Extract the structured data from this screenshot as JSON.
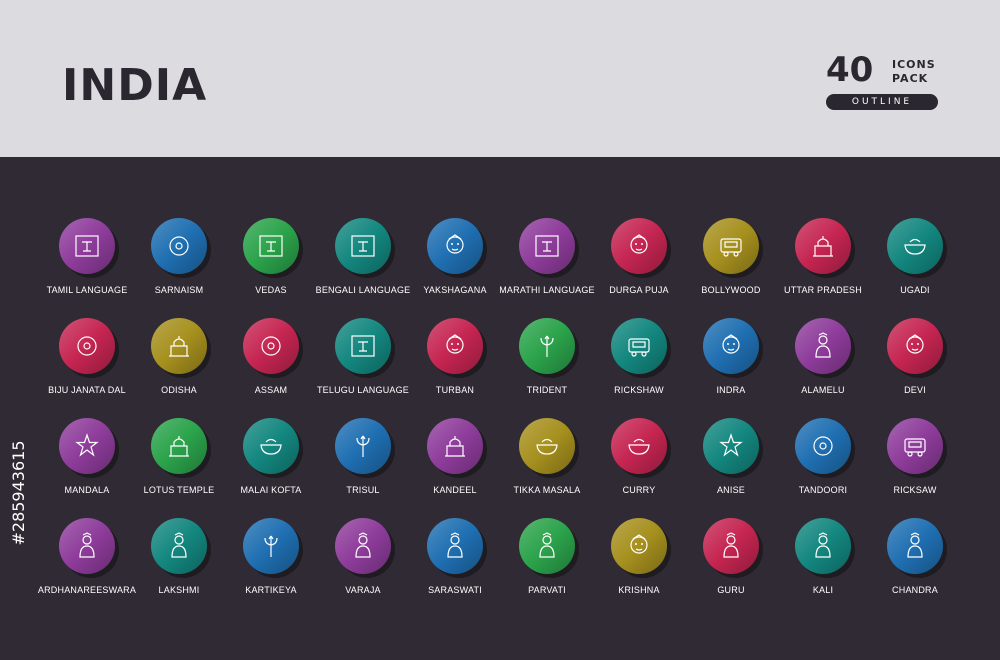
{
  "header": {
    "title": "INDIA",
    "count": "40",
    "line1": "ICONS",
    "line2": "PACK",
    "style": "OUTLINE"
  },
  "stock_id": "#285943615",
  "colors": {
    "header_bg": "#dcdbdf",
    "body_bg": "#2f2a33",
    "purple": "#8e3c9b",
    "blue": "#1f6fb2",
    "green": "#2ba34b",
    "teal": "#13877f",
    "crimson": "#c52551",
    "olive": "#a6901e"
  },
  "icons": [
    {
      "label": "TAMIL LANGUAGE",
      "color": "#8e3c9b",
      "icon": "tamil-letter-icon"
    },
    {
      "label": "SARNAISM",
      "color": "#1f6fb2",
      "icon": "sarnaism-icon"
    },
    {
      "label": "VEDAS",
      "color": "#2ba34b",
      "icon": "book-icon"
    },
    {
      "label": "BENGALI LANGUAGE",
      "color": "#13877f",
      "icon": "bengali-letter-icon"
    },
    {
      "label": "YAKSHAGANA",
      "color": "#1f6fb2",
      "icon": "mask-icon"
    },
    {
      "label": "MARATHI LANGUAGE",
      "color": "#8e3c9b",
      "icon": "marathi-letter-icon"
    },
    {
      "label": "DURGA PUJA",
      "color": "#c52551",
      "icon": "goddess-face-icon"
    },
    {
      "label": "BOLLYWOOD",
      "color": "#a6901e",
      "icon": "clapper-icon"
    },
    {
      "label": "UTTAR PRADESH",
      "color": "#c52551",
      "icon": "taj-mahal-icon"
    },
    {
      "label": "UGADI",
      "color": "#13877f",
      "icon": "pot-icon"
    },
    {
      "label": "BIJU JANATA DAL",
      "color": "#c52551",
      "icon": "conch-icon"
    },
    {
      "label": "ODISHA",
      "color": "#a6901e",
      "icon": "temple-tower-icon"
    },
    {
      "label": "ASSAM",
      "color": "#c52551",
      "icon": "rhino-icon"
    },
    {
      "label": "TELUGU LANGUAGE",
      "color": "#13877f",
      "icon": "telugu-letter-icon"
    },
    {
      "label": "TURBAN",
      "color": "#c52551",
      "icon": "turban-icon"
    },
    {
      "label": "TRIDENT",
      "color": "#2ba34b",
      "icon": "trident-icon"
    },
    {
      "label": "RICKSHAW",
      "color": "#13877f",
      "icon": "rickshaw-icon"
    },
    {
      "label": "INDRA",
      "color": "#1f6fb2",
      "icon": "deity-face-icon"
    },
    {
      "label": "ALAMELU",
      "color": "#8e3c9b",
      "icon": "goddess-icon"
    },
    {
      "label": "DEVI",
      "color": "#c52551",
      "icon": "woman-face-icon"
    },
    {
      "label": "MANDALA",
      "color": "#8e3c9b",
      "icon": "mandala-icon"
    },
    {
      "label": "LOTUS TEMPLE",
      "color": "#2ba34b",
      "icon": "lotus-temple-icon"
    },
    {
      "label": "MALAI KOFTA",
      "color": "#13877f",
      "icon": "bowl-icon"
    },
    {
      "label": "TRISUL",
      "color": "#1f6fb2",
      "icon": "trisul-icon"
    },
    {
      "label": "KANDEEL",
      "color": "#8e3c9b",
      "icon": "lantern-icon"
    },
    {
      "label": "TIKKA MASALA",
      "color": "#a6901e",
      "icon": "curry-bowl-icon"
    },
    {
      "label": "CURRY",
      "color": "#c52551",
      "icon": "spice-bowl-icon"
    },
    {
      "label": "ANISE",
      "color": "#13877f",
      "icon": "star-anise-icon"
    },
    {
      "label": "TANDOORI",
      "color": "#1f6fb2",
      "icon": "drumstick-icon"
    },
    {
      "label": "RICKSAW",
      "color": "#8e3c9b",
      "icon": "auto-rickshaw-icon"
    },
    {
      "label": "ARDHANAREESWARA",
      "color": "#8e3c9b",
      "icon": "deity-icon"
    },
    {
      "label": "LAKSHMI",
      "color": "#13877f",
      "icon": "lakshmi-icon"
    },
    {
      "label": "KARTIKEYA",
      "color": "#1f6fb2",
      "icon": "spear-icon"
    },
    {
      "label": "VARAJA",
      "color": "#8e3c9b",
      "icon": "boar-deity-icon"
    },
    {
      "label": "SARASWATI",
      "color": "#1f6fb2",
      "icon": "saraswati-icon"
    },
    {
      "label": "PARVATI",
      "color": "#2ba34b",
      "icon": "parvati-icon"
    },
    {
      "label": "KRISHNA",
      "color": "#a6901e",
      "icon": "krishna-icon"
    },
    {
      "label": "GURU",
      "color": "#c52551",
      "icon": "meditation-icon"
    },
    {
      "label": "KALI",
      "color": "#13877f",
      "icon": "kali-icon"
    },
    {
      "label": "CHANDRA",
      "color": "#1f6fb2",
      "icon": "chandra-icon"
    }
  ]
}
